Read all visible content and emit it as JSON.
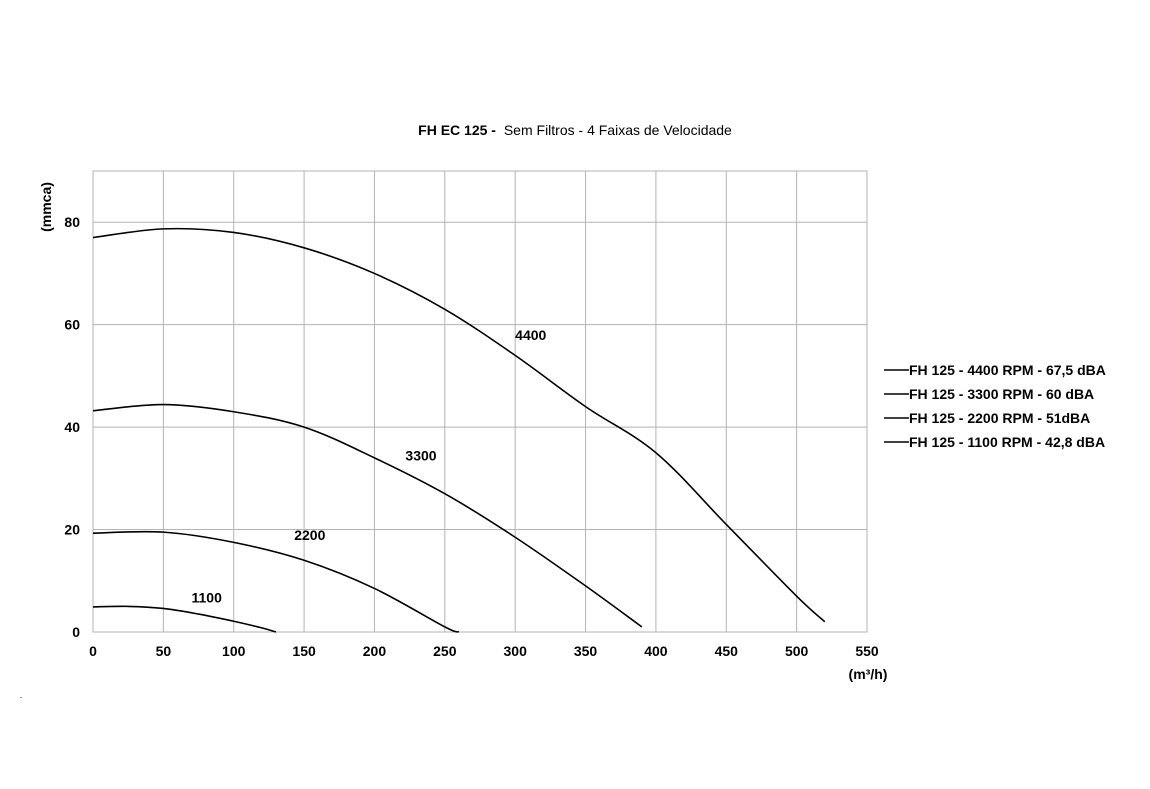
{
  "chart_data": {
    "type": "line",
    "title": {
      "bold": "FH EC 125 -",
      "normal": "Sem Filtros - 4 Faixas de Velocidade"
    },
    "xlabel": "(m³/h)",
    "ylabel": "(mmca)",
    "xlim": [
      0,
      550
    ],
    "ylim": [
      0,
      90
    ],
    "x_ticks": [
      0,
      50,
      100,
      150,
      200,
      250,
      300,
      350,
      400,
      450,
      500,
      550
    ],
    "y_ticks": [
      0,
      20,
      40,
      60,
      80
    ],
    "grid": true,
    "legend_position": "right",
    "series": [
      {
        "name": "FH 125 - 4400 RPM - 67,5 dBA",
        "curve_label": "4400",
        "label_at": [
          300,
          57
        ],
        "points": [
          [
            0,
            77
          ],
          [
            50,
            78.7
          ],
          [
            100,
            78
          ],
          [
            150,
            75
          ],
          [
            200,
            70
          ],
          [
            250,
            63
          ],
          [
            300,
            54
          ],
          [
            350,
            44
          ],
          [
            400,
            35
          ],
          [
            450,
            21
          ],
          [
            500,
            7
          ],
          [
            520,
            2
          ]
        ]
      },
      {
        "name": "FH 125 - 3300 RPM - 60 dBA",
        "curve_label": "3300",
        "label_at": [
          222,
          33.5
        ],
        "points": [
          [
            0,
            43.2
          ],
          [
            50,
            44.4
          ],
          [
            100,
            43
          ],
          [
            150,
            40
          ],
          [
            200,
            34
          ],
          [
            250,
            27
          ],
          [
            300,
            18.5
          ],
          [
            350,
            9
          ],
          [
            390,
            1
          ]
        ]
      },
      {
        "name": "FH 125 - 2200 RPM - 51dBA",
        "curve_label": "2200",
        "label_at": [
          143,
          18
        ],
        "points": [
          [
            0,
            19.3
          ],
          [
            50,
            19.5
          ],
          [
            100,
            17.5
          ],
          [
            150,
            14
          ],
          [
            200,
            8.5
          ],
          [
            250,
            1
          ],
          [
            260,
            0
          ]
        ]
      },
      {
        "name": "FH 125 - 1100 RPM - 42,8 dBA",
        "curve_label": "1100",
        "label_at": [
          70,
          5.8
        ],
        "points": [
          [
            0,
            4.9
          ],
          [
            25,
            5
          ],
          [
            50,
            4.6
          ],
          [
            75,
            3.5
          ],
          [
            100,
            2.1
          ],
          [
            120,
            0.8
          ],
          [
            130,
            0
          ]
        ]
      }
    ]
  }
}
